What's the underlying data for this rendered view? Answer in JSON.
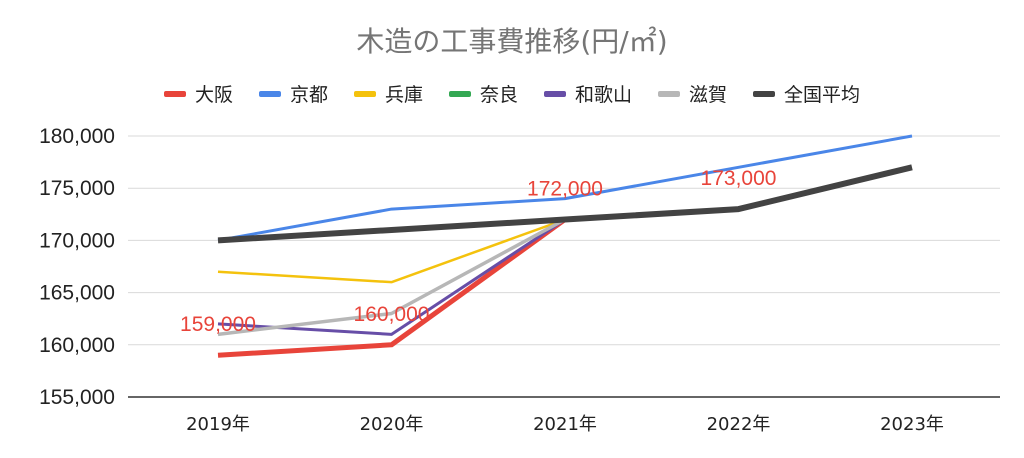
{
  "chart_data": {
    "type": "line",
    "title": "木造の工事費推移(円/㎡)",
    "categories": [
      "2019年",
      "2020年",
      "2021年",
      "2022年",
      "2023年"
    ],
    "ylim": [
      155000,
      180000
    ],
    "yticks": [
      "155,000",
      "160,000",
      "165,000",
      "170,000",
      "175,000",
      "180,000"
    ],
    "ytick_values": [
      155000,
      160000,
      165000,
      170000,
      175000,
      180000
    ],
    "legend_position": "top",
    "grid": true,
    "series": [
      {
        "name": "大阪",
        "color": "#e8443a",
        "width": 5,
        "values": [
          159000,
          160000,
          172000,
          null,
          null
        ]
      },
      {
        "name": "京都",
        "color": "#4a86e8",
        "width": 3,
        "values": [
          170000,
          173000,
          174000,
          177000,
          180000
        ]
      },
      {
        "name": "兵庫",
        "color": "#f4c20d",
        "width": 2.5,
        "values": [
          167000,
          166000,
          172000,
          null,
          null
        ]
      },
      {
        "name": "奈良",
        "color": "#34a853",
        "width": 3,
        "values": [
          null,
          null,
          null,
          null,
          null
        ]
      },
      {
        "name": "和歌山",
        "color": "#674ea7",
        "width": 3,
        "values": [
          162000,
          161000,
          172000,
          null,
          null
        ]
      },
      {
        "name": "滋賀",
        "color": "#b7b7b7",
        "width": 3.5,
        "values": [
          161000,
          163000,
          172000,
          null,
          null
        ]
      },
      {
        "name": "全国平均",
        "color": "#434343",
        "width": 6,
        "values": [
          170000,
          171000,
          172000,
          173000,
          177000
        ]
      }
    ],
    "data_labels": [
      {
        "text": "159,000",
        "category": "2019年",
        "value": 159000
      },
      {
        "text": "160,000",
        "category": "2020年",
        "value": 160000
      },
      {
        "text": "172,000",
        "category": "2021年",
        "value": 172000
      },
      {
        "text": "173,000",
        "category": "2022年",
        "value": 173000
      }
    ]
  }
}
